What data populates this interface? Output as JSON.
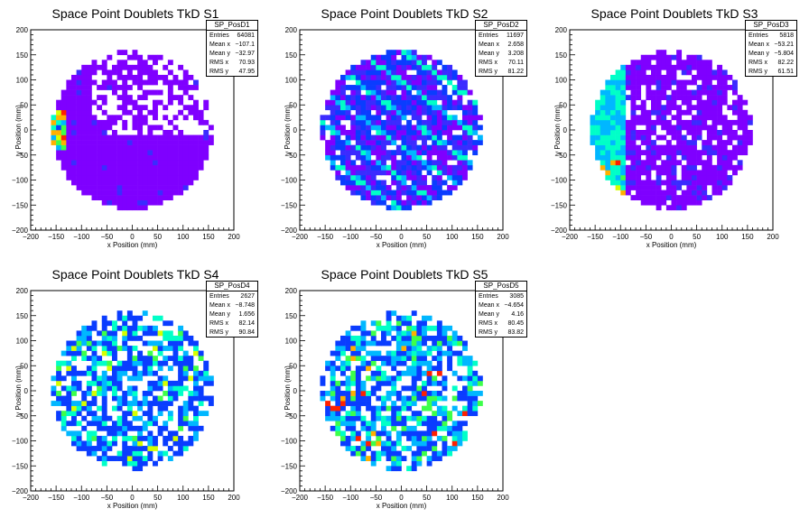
{
  "colors": {
    "background": "#ffffff",
    "axis": "#000000",
    "palette": [
      "#7f00ff",
      "#3b2bff",
      "#0a3cff",
      "#00b7ff",
      "#00ffc8",
      "#3dff4a",
      "#d6ff00",
      "#ffb000",
      "#ff2000"
    ]
  },
  "chart_data": [
    {
      "type": "heatmap",
      "title": "Space Point Doublets TkD S1",
      "xlabel": "x Position (mm)",
      "ylabel": "y Position (mm)",
      "xlim": [
        -200,
        200
      ],
      "ylim": [
        -200,
        200
      ],
      "xticks": [
        "−200",
        "−150",
        "−100",
        "−50",
        "0",
        "50",
        "100",
        "150",
        "200"
      ],
      "yticks": [
        "−200",
        "−150",
        "−100",
        "−50",
        "0",
        "50",
        "100",
        "150",
        "200"
      ],
      "stats": {
        "name": "SP_PosD1",
        "rows": [
          [
            "Entries",
            "64081"
          ],
          [
            "Mean x",
            "−107.1"
          ],
          [
            "Mean y",
            "−32.97"
          ],
          [
            "RMS x",
            "70.93"
          ],
          [
            "RMS y",
            "47.95"
          ]
        ]
      }
    },
    {
      "type": "heatmap",
      "title": "Space Point Doublets TkD S2",
      "xlabel": "x Position (mm)",
      "ylabel": "y Position (mm)",
      "xlim": [
        -200,
        200
      ],
      "ylim": [
        -200,
        200
      ],
      "xticks": [
        "−200",
        "−150",
        "−100",
        "−50",
        "0",
        "50",
        "100",
        "150",
        "200"
      ],
      "yticks": [
        "−200",
        "−150",
        "−100",
        "−50",
        "0",
        "50",
        "100",
        "150",
        "200"
      ],
      "stats": {
        "name": "SP_PosD2",
        "rows": [
          [
            "Entries",
            "11697"
          ],
          [
            "Mean x",
            "2.658"
          ],
          [
            "Mean y",
            "3.208"
          ],
          [
            "RMS x",
            "70.11"
          ],
          [
            "RMS y",
            "81.22"
          ]
        ]
      }
    },
    {
      "type": "heatmap",
      "title": "Space Point Doublets TkD S3",
      "xlabel": "x Position (mm)",
      "ylabel": "y Position (mm)",
      "xlim": [
        -200,
        200
      ],
      "ylim": [
        -200,
        200
      ],
      "xticks": [
        "−200",
        "−150",
        "−100",
        "−50",
        "0",
        "50",
        "100",
        "150",
        "200"
      ],
      "yticks": [
        "−200",
        "−150",
        "−100",
        "−50",
        "0",
        "50",
        "100",
        "150",
        "200"
      ],
      "stats": {
        "name": "SP_PosD3",
        "rows": [
          [
            "Entries",
            "5818"
          ],
          [
            "Mean x",
            "−53.21"
          ],
          [
            "Mean y",
            "−5.804"
          ],
          [
            "RMS x",
            "82.22"
          ],
          [
            "RMS y",
            "61.51"
          ]
        ]
      }
    },
    {
      "type": "heatmap",
      "title": "Space Point Doublets TkD S4",
      "xlabel": "x Position (mm)",
      "ylabel": "y Position (mm)",
      "xlim": [
        -200,
        200
      ],
      "ylim": [
        -200,
        200
      ],
      "xticks": [
        "−200",
        "−150",
        "−100",
        "−50",
        "0",
        "50",
        "100",
        "150",
        "200"
      ],
      "yticks": [
        "−200",
        "−150",
        "−100",
        "−50",
        "0",
        "50",
        "100",
        "150",
        "200"
      ],
      "stats": {
        "name": "SP_PosD4",
        "rows": [
          [
            "Entries",
            "2627"
          ],
          [
            "Mean x",
            "−8.748"
          ],
          [
            "Mean y",
            "1.656"
          ],
          [
            "RMS x",
            "82.14"
          ],
          [
            "RMS y",
            "90.84"
          ]
        ]
      }
    },
    {
      "type": "heatmap",
      "title": "Space Point Doublets TkD S5",
      "xlabel": "x Position (mm)",
      "ylabel": "y Position (mm)",
      "xlim": [
        -200,
        200
      ],
      "ylim": [
        -200,
        200
      ],
      "xticks": [
        "−200",
        "−150",
        "−100",
        "−50",
        "0",
        "50",
        "100",
        "150",
        "200"
      ],
      "yticks": [
        "−200",
        "−150",
        "−100",
        "−50",
        "0",
        "50",
        "100",
        "150",
        "200"
      ],
      "stats": {
        "name": "SP_PosD5",
        "rows": [
          [
            "Entries",
            "3085"
          ],
          [
            "Mean x",
            "−4.654"
          ],
          [
            "Mean y",
            "4.16"
          ],
          [
            "RMS x",
            "80.45"
          ],
          [
            "RMS y",
            "83.82"
          ]
        ]
      }
    }
  ]
}
